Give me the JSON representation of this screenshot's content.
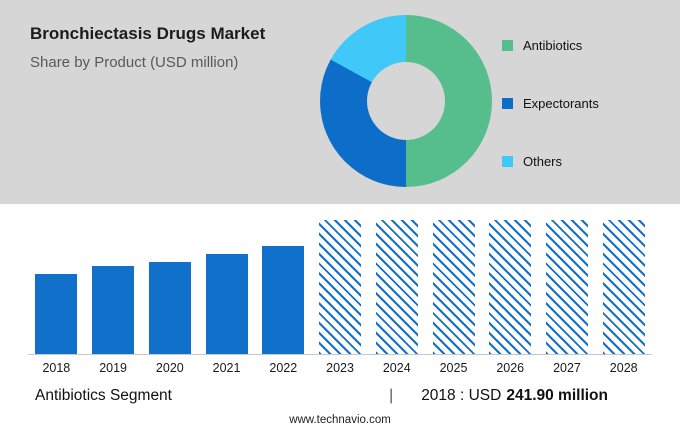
{
  "header": {
    "title": "Bronchiectasis Drugs Market",
    "subtitle": "Share by Product (USD million)"
  },
  "footer": {
    "segment_label": "Antibiotics Segment",
    "divider": "|",
    "stat_prefix": "2018 : USD",
    "stat_value": "241.90 million",
    "website": "www.technavio.com"
  },
  "colors": {
    "hero_background": "#d6d6d6",
    "bar_blue": "#1170ca",
    "axis_line": "#c9c9c9"
  },
  "chart_data": [
    {
      "type": "pie",
      "donut": true,
      "title": "Share by Product (USD million)",
      "labels": [
        "Antibiotics",
        "Expectorants",
        "Others"
      ],
      "values": [
        50,
        33,
        17
      ],
      "values_note": "percent shares estimated from arc angles; no numeric labels shown in image",
      "colors": [
        "#56be8d",
        "#0c6ec8",
        "#3fc8f8"
      ],
      "legend_position": "right"
    },
    {
      "type": "bar",
      "categories": [
        "2018",
        "2019",
        "2020",
        "2021",
        "2022",
        "2023",
        "2024",
        "2025",
        "2026",
        "2027",
        "2028"
      ],
      "values": [
        80,
        88,
        92,
        100,
        108,
        134,
        134,
        134,
        134,
        134,
        134
      ],
      "values_note": "relative bar heights in px; chart shows no y-axis; 2023-2028 are full-height diagonally hatched forecast bars",
      "forecast_from": "2023",
      "bar_color": "#1170ca",
      "annotation": "Antibiotics Segment | 2018 : USD 241.90 million"
    }
  ]
}
